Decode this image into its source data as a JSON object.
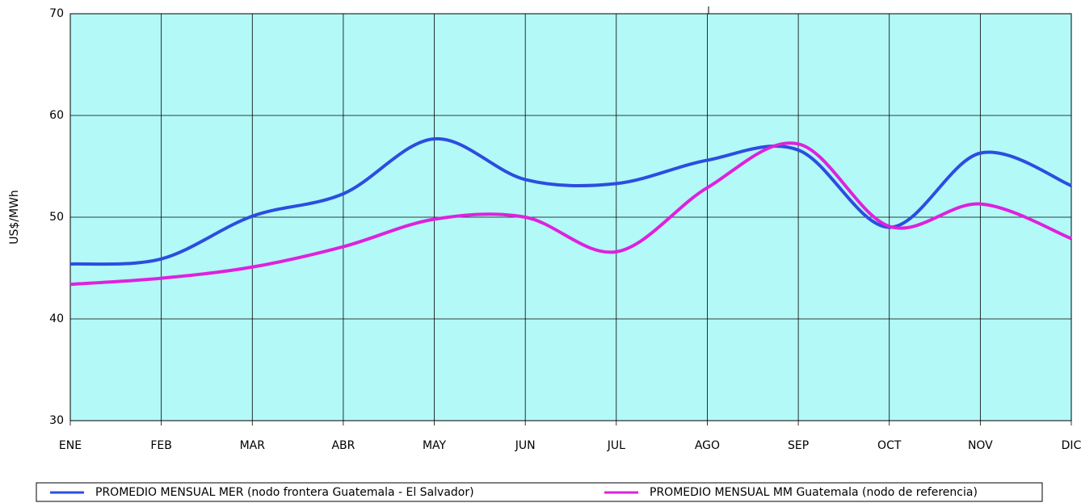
{
  "chart_data": {
    "type": "line",
    "y_label": "US$/MWh",
    "categories": [
      "ENE",
      "FEB",
      "MAR",
      "ABR",
      "MAY",
      "JUN",
      "JUL",
      "AGO",
      "SEP",
      "OCT",
      "NOV",
      "DIC"
    ],
    "series": [
      {
        "name": "PROMEDIO MENSUAL MER (nodo frontera Guatemala - El Salvador)",
        "color": "#2b4ee0",
        "values": [
          45.4,
          45.9,
          50.1,
          52.3,
          57.7,
          53.7,
          53.3,
          55.6,
          56.6,
          49.0,
          56.3,
          53.1
        ]
      },
      {
        "name": "PROMEDIO MENSUAL MM Guatemala (nodo de referencia)",
        "color": "#dd22dd",
        "values": [
          43.4,
          44.0,
          45.1,
          47.1,
          49.8,
          50.0,
          46.6,
          52.9,
          57.2,
          49.1,
          51.3,
          47.9
        ]
      }
    ],
    "ylim": [
      30,
      70
    ],
    "yticks": [
      30,
      40,
      50,
      60,
      70
    ],
    "grid": true,
    "background": "#b3f9f7",
    "legend": "bottom"
  }
}
